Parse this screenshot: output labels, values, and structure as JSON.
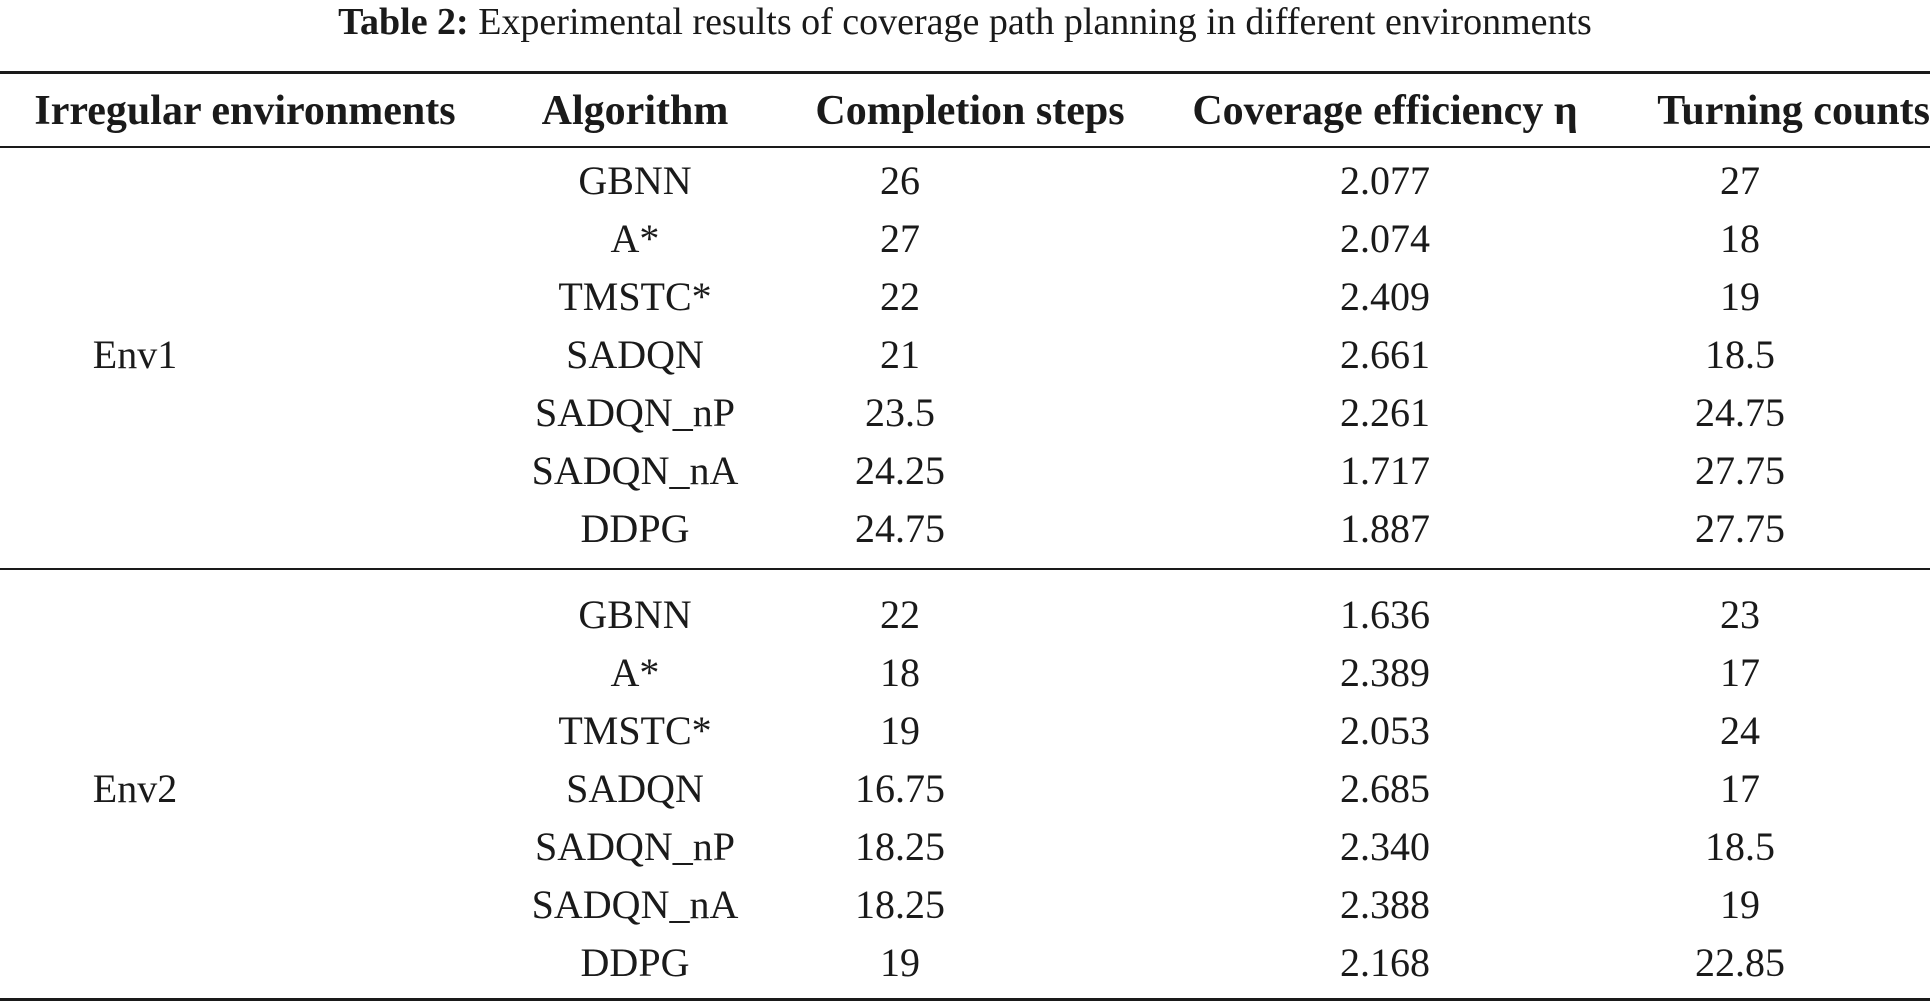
{
  "caption": {
    "label": "Table 2:",
    "text": "Experimental results of coverage path planning in different environments"
  },
  "headers": {
    "environment": "Irregular environments",
    "algorithm": "Algorithm",
    "steps": "Completion steps",
    "efficiency": "Coverage efficiency η",
    "turning": "Turning counts"
  },
  "groups": [
    {
      "env": "Env1",
      "rows": [
        {
          "algorithm": "GBNN",
          "steps": "26",
          "efficiency": "2.077",
          "turning": "27"
        },
        {
          "algorithm": "A*",
          "steps": "27",
          "efficiency": "2.074",
          "turning": "18"
        },
        {
          "algorithm": "TMSTC*",
          "steps": "22",
          "efficiency": "2.409",
          "turning": "19"
        },
        {
          "algorithm": "SADQN",
          "steps": "21",
          "efficiency": "2.661",
          "turning": "18.5"
        },
        {
          "algorithm": "SADQN_nP",
          "steps": "23.5",
          "efficiency": "2.261",
          "turning": "24.75"
        },
        {
          "algorithm": "SADQN_nA",
          "steps": "24.25",
          "efficiency": "1.717",
          "turning": "27.75"
        },
        {
          "algorithm": "DDPG",
          "steps": "24.75",
          "efficiency": "1.887",
          "turning": "27.75"
        }
      ]
    },
    {
      "env": "Env2",
      "rows": [
        {
          "algorithm": "GBNN",
          "steps": "22",
          "efficiency": "1.636",
          "turning": "23"
        },
        {
          "algorithm": "A*",
          "steps": "18",
          "efficiency": "2.389",
          "turning": "17"
        },
        {
          "algorithm": "TMSTC*",
          "steps": "19",
          "efficiency": "2.053",
          "turning": "24"
        },
        {
          "algorithm": "SADQN",
          "steps": "16.75",
          "efficiency": "2.685",
          "turning": "17"
        },
        {
          "algorithm": "SADQN_nP",
          "steps": "18.25",
          "efficiency": "2.340",
          "turning": "18.5"
        },
        {
          "algorithm": "SADQN_nA",
          "steps": "18.25",
          "efficiency": "2.388",
          "turning": "19"
        },
        {
          "algorithm": "DDPG",
          "steps": "19",
          "efficiency": "2.168",
          "turning": "22.85"
        }
      ]
    }
  ]
}
